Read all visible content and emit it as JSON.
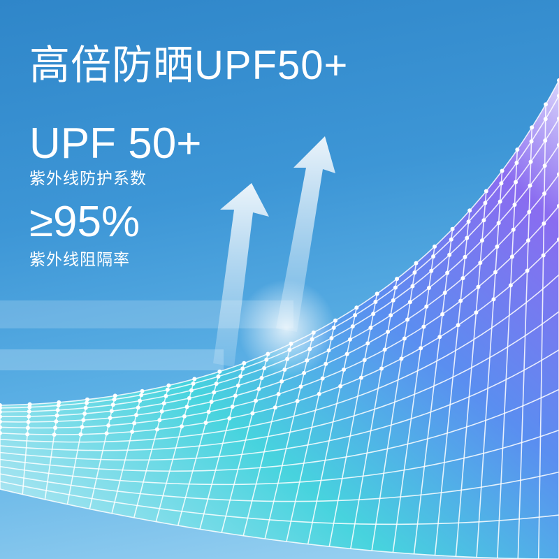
{
  "headline": "高倍防晒UPF50+",
  "stats": [
    {
      "value": "UPF 50+",
      "label": "紫外线防护系数"
    },
    {
      "value": "≥95%",
      "label": "紫外线阻隔率"
    }
  ],
  "colors": {
    "background": "#3d96d6",
    "mesh_purple": "#7a6cf0",
    "mesh_cyan": "#3fd6e0",
    "text": "#ffffff"
  },
  "icons": [
    "up-arrow-icon",
    "up-arrow-icon"
  ]
}
